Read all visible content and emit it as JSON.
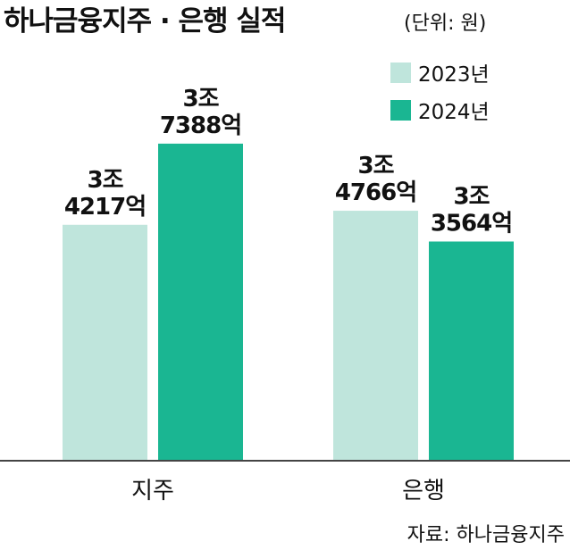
{
  "chart_data": {
    "type": "bar",
    "title": "하나금융지주 · 은행 실적",
    "subtitle": "(단위: 원)",
    "categories": [
      "지주",
      "은행"
    ],
    "series": [
      {
        "name": "2023년",
        "color": "#bfe5dc",
        "values": [
          34217,
          34766
        ],
        "value_labels": [
          [
            "3조",
            "4217억"
          ],
          [
            "3조",
            "4766억"
          ]
        ]
      },
      {
        "name": "2024년",
        "color": "#1ab692",
        "values": [
          37388,
          33564
        ],
        "value_labels": [
          [
            "3조",
            "7388억"
          ],
          [
            "3조",
            "3564억"
          ]
        ]
      }
    ],
    "ylim": [
      25000,
      40000
    ],
    "source": "자료: 하나금융지주"
  }
}
